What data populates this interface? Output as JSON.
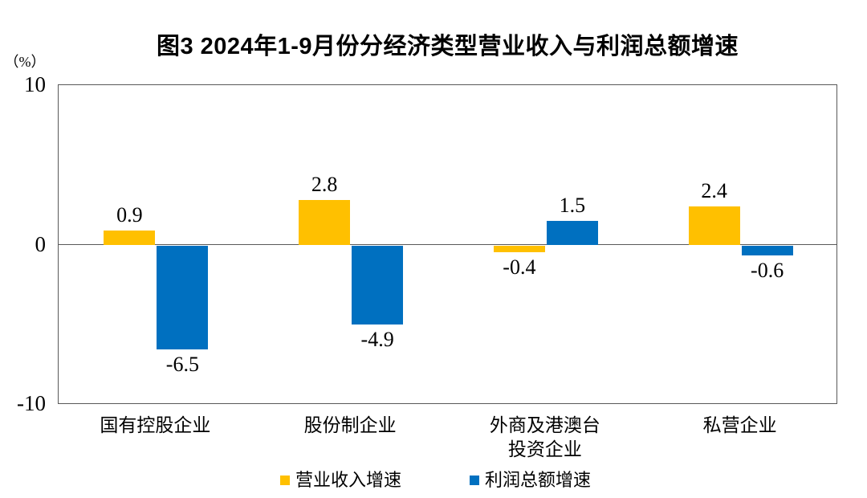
{
  "title": "图3 2024年1-9月份分经济类型营业收入与利润总额增速",
  "y_axis": {
    "unit": "（%）",
    "ticks": [
      "10",
      "0",
      "-10"
    ]
  },
  "legend": [
    {
      "id": "revenue-growth",
      "label": "营业收入增速",
      "color": "#FFC000"
    },
    {
      "id": "profit-growth",
      "label": "利润总额增速",
      "color": "#0070C0"
    }
  ],
  "chart_data": {
    "type": "bar",
    "title": "图3 2024年1-9月份分经济类型营业收入与利润总额增速",
    "categories": [
      "国有控股企业",
      "股份制企业",
      "外商及港澳台\n投资企业",
      "私营企业"
    ],
    "series": [
      {
        "id": "revenue-growth",
        "name": "营业收入增速",
        "color": "#FFC000",
        "values": [
          0.9,
          2.8,
          -0.4,
          2.4
        ]
      },
      {
        "id": "profit-growth",
        "name": "利润总额增速",
        "color": "#0070C0",
        "values": [
          -6.5,
          -4.9,
          1.5,
          -0.6
        ]
      }
    ],
    "xlabel": "",
    "ylabel": "（%）",
    "ylim": [
      -10,
      10
    ],
    "yticks": [
      10,
      0,
      -10
    ],
    "grid": false,
    "value_labels": true,
    "legend_position": "bottom"
  },
  "colors": {
    "axis_line": "#595959",
    "text": "#000000",
    "background": "#FFFFFF"
  }
}
